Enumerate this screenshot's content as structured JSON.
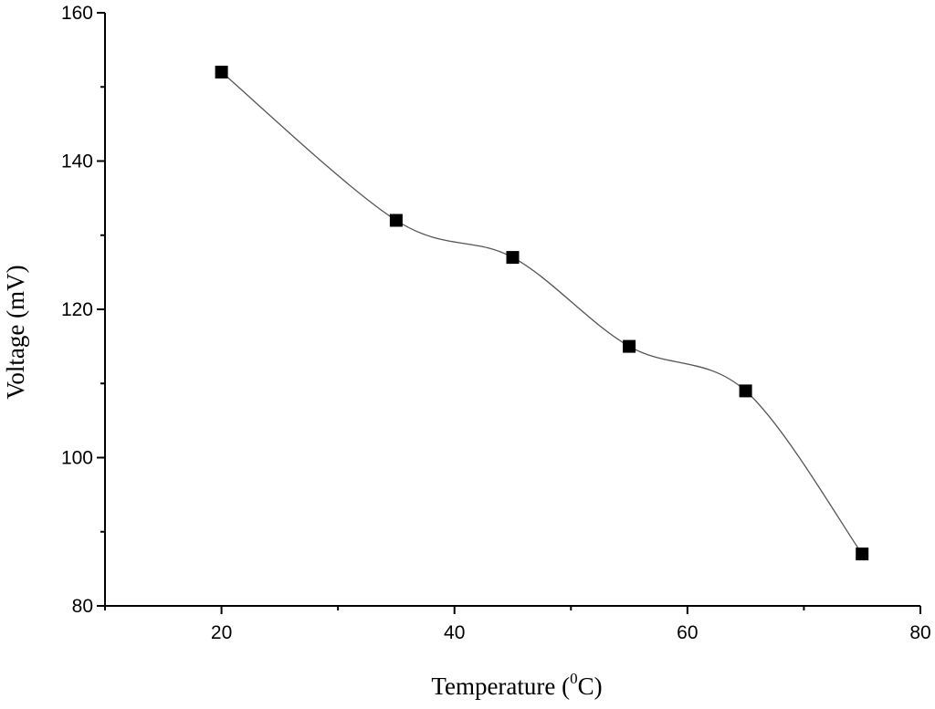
{
  "chart_data": {
    "type": "line",
    "title": "",
    "xlabel_main": "Temperature (",
    "xlabel_sup": "0",
    "xlabel_tail": "C)",
    "ylabel": "Voltage (mV)",
    "xlim": [
      10,
      80
    ],
    "ylim": [
      80,
      160
    ],
    "x_ticks": [
      20,
      40,
      60,
      80
    ],
    "x_minor_ticks": [
      10,
      30,
      50,
      70
    ],
    "y_ticks": [
      80,
      100,
      120,
      140,
      160
    ],
    "y_minor_ticks": [
      90,
      110,
      130,
      150
    ],
    "grid": false,
    "legend": "none",
    "line_style": "smooth spline",
    "marker": "filled square",
    "colors": {
      "line": "#555555",
      "marker": "#000000",
      "axis": "#000000"
    },
    "series": [
      {
        "x": [
          20,
          35,
          45,
          55,
          65,
          75
        ],
        "y": [
          152,
          132,
          127,
          115,
          109,
          87
        ]
      }
    ]
  }
}
